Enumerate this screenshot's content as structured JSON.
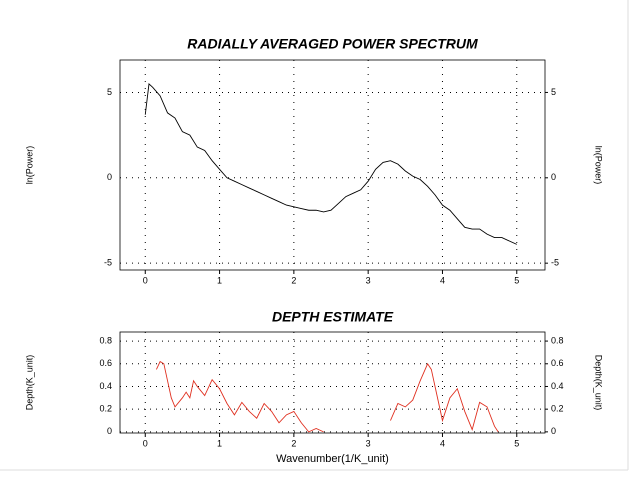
{
  "chart_data": [
    {
      "type": "line",
      "title": "RADIALLY AVERAGED POWER SPECTRUM",
      "y_label": "ln(Power)",
      "y2_label": "ln(Power)",
      "xlim": [
        -0.34,
        5.38
      ],
      "xticks": [
        0,
        1,
        2,
        3,
        4,
        5
      ],
      "ylim": [
        -5.4,
        6.9
      ],
      "yticks": [
        -5,
        0,
        5
      ],
      "y2lim": [
        -5.4,
        6.9
      ],
      "y2ticks": [
        -5,
        0,
        5
      ],
      "grid": true,
      "series": [
        {
          "color": "#000000",
          "x": [
            0,
            0.05,
            0.1,
            0.2,
            0.3,
            0.4,
            0.5,
            0.6,
            0.7,
            0.8,
            0.9,
            1.0,
            1.1,
            1.2,
            1.3,
            1.4,
            1.5,
            1.6,
            1.7,
            1.8,
            1.9,
            2.0,
            2.1,
            2.2,
            2.3,
            2.4,
            2.5,
            2.6,
            2.7,
            2.8,
            2.9,
            3.0,
            3.1,
            3.2,
            3.3,
            3.4,
            3.5,
            3.6,
            3.7,
            3.8,
            3.9,
            4.0,
            4.1,
            4.2,
            4.3,
            4.4,
            4.5,
            4.6,
            4.7,
            4.8,
            4.9,
            5.0
          ],
          "values": [
            3.7,
            5.5,
            5.3,
            4.8,
            3.8,
            3.5,
            2.7,
            2.5,
            1.8,
            1.6,
            1.0,
            0.5,
            0.0,
            -0.2,
            -0.4,
            -0.6,
            -0.8,
            -1.0,
            -1.2,
            -1.4,
            -1.6,
            -1.7,
            -1.8,
            -1.9,
            -1.9,
            -2.0,
            -1.9,
            -1.5,
            -1.1,
            -0.9,
            -0.7,
            -0.2,
            0.5,
            0.9,
            1.0,
            0.8,
            0.4,
            0.1,
            -0.1,
            -0.5,
            -1.0,
            -1.6,
            -1.9,
            -2.4,
            -2.9,
            -3.0,
            -3.0,
            -3.3,
            -3.5,
            -3.5,
            -3.7,
            -3.9
          ]
        }
      ]
    },
    {
      "type": "line",
      "title": "DEPTH ESTIMATE",
      "x_label": "Wavenumber(1/K_unit)",
      "y_label": "Depth(K_unit)",
      "y2_label": "Depth(K_unit)",
      "xlim": [
        -0.34,
        5.38
      ],
      "xticks": [
        0,
        1,
        2,
        3,
        4,
        5
      ],
      "ylim": [
        -0.01,
        0.88
      ],
      "yticks": [
        0,
        0.2,
        0.4,
        0.6,
        0.8
      ],
      "y2lim": [
        -0.01,
        0.88
      ],
      "y2ticks": [
        0,
        0.2,
        0.4,
        0.6,
        0.8
      ],
      "grid": true,
      "series": [
        {
          "color": "#e03020",
          "x": [
            0.15,
            0.2,
            0.25,
            0.3,
            0.35,
            0.4,
            0.5,
            0.55,
            0.6,
            0.65,
            0.7,
            0.8,
            0.9,
            1.0,
            1.1,
            1.2,
            1.3,
            1.4,
            1.5,
            1.6,
            1.7,
            1.8,
            1.9,
            2.0,
            2.1,
            2.2,
            2.3,
            2.4,
            2.8,
            3.3,
            3.4,
            3.5,
            3.6,
            3.7,
            3.8,
            3.85,
            3.9,
            4.0,
            4.1,
            4.2,
            4.3,
            4.4,
            4.5,
            4.6,
            4.7,
            4.75
          ],
          "values": [
            0.55,
            0.62,
            0.6,
            0.45,
            0.3,
            0.22,
            0.3,
            0.35,
            0.3,
            0.45,
            0.4,
            0.32,
            0.46,
            0.38,
            0.25,
            0.15,
            0.26,
            0.18,
            0.12,
            0.25,
            0.18,
            0.08,
            0.15,
            0.18,
            0.08,
            0.0,
            0.03,
            0.0,
            null,
            0.1,
            0.25,
            0.22,
            0.28,
            0.45,
            0.6,
            0.55,
            0.4,
            0.1,
            0.3,
            0.38,
            0.18,
            0.02,
            0.26,
            0.22,
            0.05,
            0.0
          ]
        }
      ]
    }
  ]
}
